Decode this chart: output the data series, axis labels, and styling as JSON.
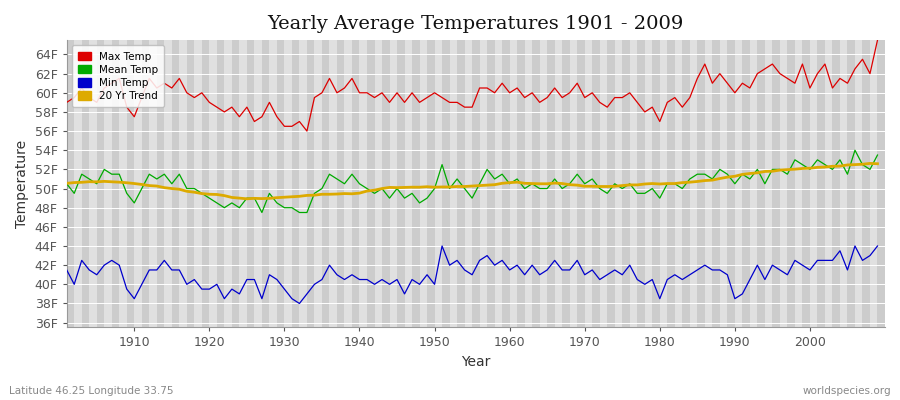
{
  "title": "Yearly Average Temperatures 1901 - 2009",
  "xlabel": "Year",
  "ylabel": "Temperature",
  "years_start": 1901,
  "years_end": 2009,
  "yticks": [
    "36F",
    "38F",
    "40F",
    "42F",
    "44F",
    "46F",
    "48F",
    "50F",
    "52F",
    "54F",
    "56F",
    "58F",
    "60F",
    "62F",
    "64F"
  ],
  "ytick_vals": [
    36,
    38,
    40,
    42,
    44,
    46,
    48,
    50,
    52,
    54,
    56,
    58,
    60,
    62,
    64
  ],
  "ylim": [
    35.5,
    65.5
  ],
  "xlim": [
    1901,
    2010
  ],
  "legend_labels": [
    "Max Temp",
    "Mean Temp",
    "Min Temp",
    "20 Yr Trend"
  ],
  "legend_colors": [
    "#dd0000",
    "#00aa00",
    "#0000cc",
    "#ddaa00"
  ],
  "bg_color": "#ffffff",
  "plot_bg_color": "#e0e0e0",
  "stripe_color": "#cccccc",
  "grid_color": "#ffffff",
  "title_fontsize": 14,
  "axis_fontsize": 9,
  "label_fontsize": 10,
  "bottom_left_text": "Latitude 46.25 Longitude 33.75",
  "bottom_right_text": "worldspecies.org",
  "max_temps": [
    59.0,
    59.5,
    60.5,
    59.5,
    59.0,
    60.5,
    61.0,
    61.5,
    58.5,
    57.5,
    59.5,
    61.5,
    60.5,
    61.0,
    60.5,
    61.5,
    60.0,
    59.5,
    60.0,
    59.0,
    58.5,
    58.0,
    58.5,
    57.5,
    58.5,
    57.0,
    57.5,
    59.0,
    57.5,
    56.5,
    56.5,
    57.0,
    56.0,
    59.5,
    60.0,
    61.5,
    60.0,
    60.5,
    61.5,
    60.0,
    60.0,
    59.5,
    60.0,
    59.0,
    60.0,
    59.0,
    60.0,
    59.0,
    59.5,
    60.0,
    59.5,
    59.0,
    59.0,
    58.5,
    58.5,
    60.5,
    60.5,
    60.0,
    61.0,
    60.0,
    60.5,
    59.5,
    60.0,
    59.0,
    59.5,
    60.5,
    59.5,
    60.0,
    61.0,
    59.5,
    60.0,
    59.0,
    58.5,
    59.5,
    59.5,
    60.0,
    59.0,
    58.0,
    58.5,
    57.0,
    59.0,
    59.5,
    58.5,
    59.5,
    61.5,
    63.0,
    61.0,
    62.0,
    61.0,
    60.0,
    61.0,
    60.5,
    62.0,
    62.5,
    63.0,
    62.0,
    61.5,
    61.0,
    63.0,
    60.5,
    62.0,
    63.0,
    60.5,
    61.5,
    61.0,
    62.5,
    63.5,
    62.0,
    65.5
  ],
  "mean_temps": [
    50.5,
    49.5,
    51.5,
    51.0,
    50.5,
    52.0,
    51.5,
    51.5,
    49.5,
    48.5,
    50.0,
    51.5,
    51.0,
    51.5,
    50.5,
    51.5,
    50.0,
    50.0,
    49.5,
    49.0,
    48.5,
    48.0,
    48.5,
    48.0,
    49.0,
    49.0,
    47.5,
    49.5,
    48.5,
    48.0,
    48.0,
    47.5,
    47.5,
    49.5,
    50.0,
    51.5,
    51.0,
    50.5,
    51.5,
    50.5,
    50.0,
    49.5,
    50.0,
    49.0,
    50.0,
    49.0,
    49.5,
    48.5,
    49.0,
    50.0,
    52.5,
    50.0,
    51.0,
    50.0,
    49.0,
    50.5,
    52.0,
    51.0,
    51.5,
    50.5,
    51.0,
    50.0,
    50.5,
    50.0,
    50.0,
    51.0,
    50.0,
    50.5,
    51.5,
    50.5,
    51.0,
    50.0,
    49.5,
    50.5,
    50.0,
    50.5,
    49.5,
    49.5,
    50.0,
    49.0,
    50.5,
    50.5,
    50.0,
    51.0,
    51.5,
    51.5,
    51.0,
    52.0,
    51.5,
    50.5,
    51.5,
    51.0,
    52.0,
    50.5,
    52.0,
    52.0,
    51.5,
    53.0,
    52.5,
    52.0,
    53.0,
    52.5,
    52.0,
    53.0,
    51.5,
    54.0,
    52.5,
    52.0,
    53.5
  ],
  "min_temps": [
    41.5,
    40.0,
    42.5,
    41.5,
    41.0,
    42.0,
    42.5,
    42.0,
    39.5,
    38.5,
    40.0,
    41.5,
    41.5,
    42.5,
    41.5,
    41.5,
    40.0,
    40.5,
    39.5,
    39.5,
    40.0,
    38.5,
    39.5,
    39.0,
    40.5,
    40.5,
    38.5,
    41.0,
    40.5,
    39.5,
    38.5,
    38.0,
    39.0,
    40.0,
    40.5,
    42.0,
    41.0,
    40.5,
    41.0,
    40.5,
    40.5,
    40.0,
    40.5,
    40.0,
    40.5,
    39.0,
    40.5,
    40.0,
    41.0,
    40.0,
    44.0,
    42.0,
    42.5,
    41.5,
    41.0,
    42.5,
    43.0,
    42.0,
    42.5,
    41.5,
    42.0,
    41.0,
    42.0,
    41.0,
    41.5,
    42.5,
    41.5,
    41.5,
    42.5,
    41.0,
    41.5,
    40.5,
    41.0,
    41.5,
    41.0,
    42.0,
    40.5,
    40.0,
    40.5,
    38.5,
    40.5,
    41.0,
    40.5,
    41.0,
    41.5,
    42.0,
    41.5,
    41.5,
    41.0,
    38.5,
    39.0,
    40.5,
    42.0,
    40.5,
    42.0,
    41.5,
    41.0,
    42.5,
    42.0,
    41.5,
    42.5,
    42.5,
    42.5,
    43.5,
    41.5,
    44.0,
    42.5,
    43.0,
    44.0
  ]
}
